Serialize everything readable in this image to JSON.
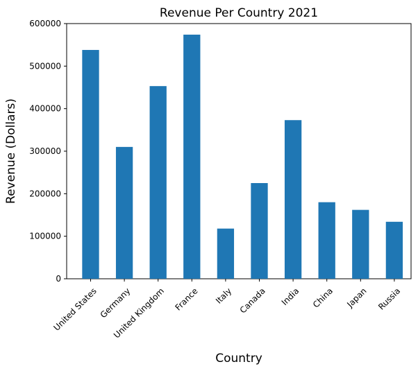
{
  "chart_data": {
    "type": "bar",
    "title": "Revenue Per Country 2021",
    "xlabel": "Country",
    "ylabel": "Revenue (Dollars)",
    "categories": [
      "United States",
      "Germany",
      "United Kingdom",
      "France",
      "Italy",
      "Canada",
      "India",
      "China",
      "Japan",
      "Russia"
    ],
    "values": [
      538000,
      310000,
      453000,
      574000,
      118000,
      225000,
      373000,
      180000,
      162000,
      134000
    ],
    "ylim": [
      0,
      600000
    ],
    "yticks": [
      0,
      100000,
      200000,
      300000,
      400000,
      500000,
      600000
    ],
    "ytick_labels": [
      "0",
      "100000",
      "200000",
      "300000",
      "400000",
      "500000",
      "600000"
    ],
    "bar_color": "#1f77b4",
    "grid": false,
    "legend": "none"
  }
}
